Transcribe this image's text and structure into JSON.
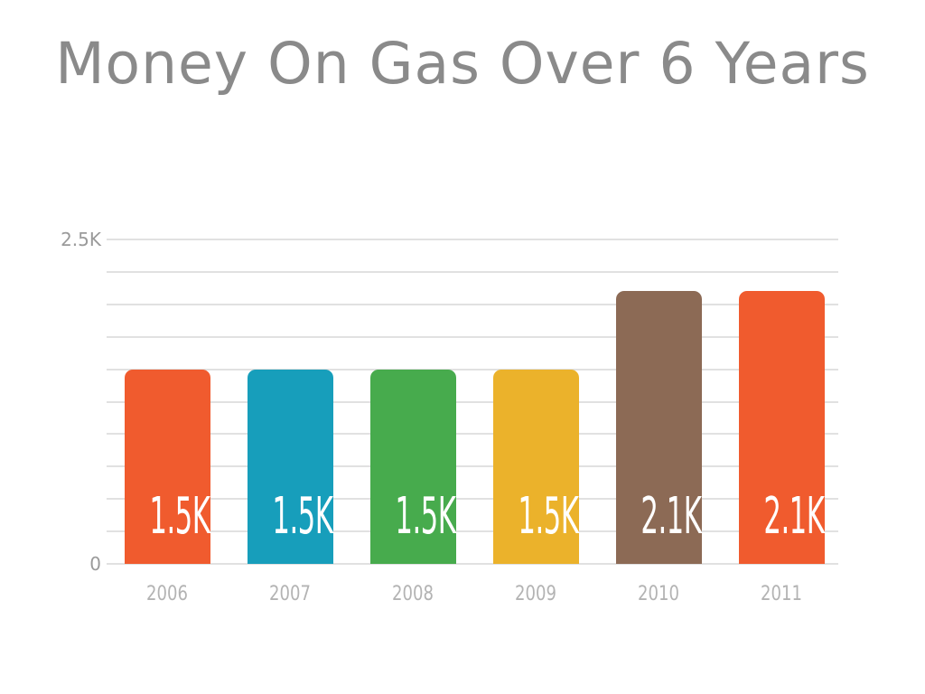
{
  "header": {
    "title": "Money On Gas Over 6 Years"
  },
  "axis": {
    "y_top_label": "2.5K",
    "y_zero_label": "0"
  },
  "chart_data": {
    "type": "bar",
    "title": "Money On Gas Over 6 Years",
    "categories": [
      "2006",
      "2007",
      "2008",
      "2009",
      "2010",
      "2011"
    ],
    "values": [
      1500,
      1500,
      1500,
      1500,
      2100,
      2100
    ],
    "bar_labels": [
      "1.5K",
      "1.5K",
      "1.5K",
      "1.5K",
      "2.1K",
      "2.1K"
    ],
    "bar_colors": [
      "#F05B2E",
      "#179EBB",
      "#47AB4D",
      "#EBB22B",
      "#8C6A55",
      "#F05B2E"
    ],
    "xlabel": "",
    "ylabel": "",
    "ylim": [
      0,
      2500
    ],
    "ytick_labels": [
      "2.5K",
      "0"
    ],
    "gridline_step": 250,
    "grid": true,
    "legend": "none",
    "title_color": "#8a8a8a",
    "gridline_color": "#e1e1e1",
    "tick_label_color": "#9a9a9a",
    "category_label_color": "#b3b3b3",
    "value_label_color": "#ffffff"
  }
}
